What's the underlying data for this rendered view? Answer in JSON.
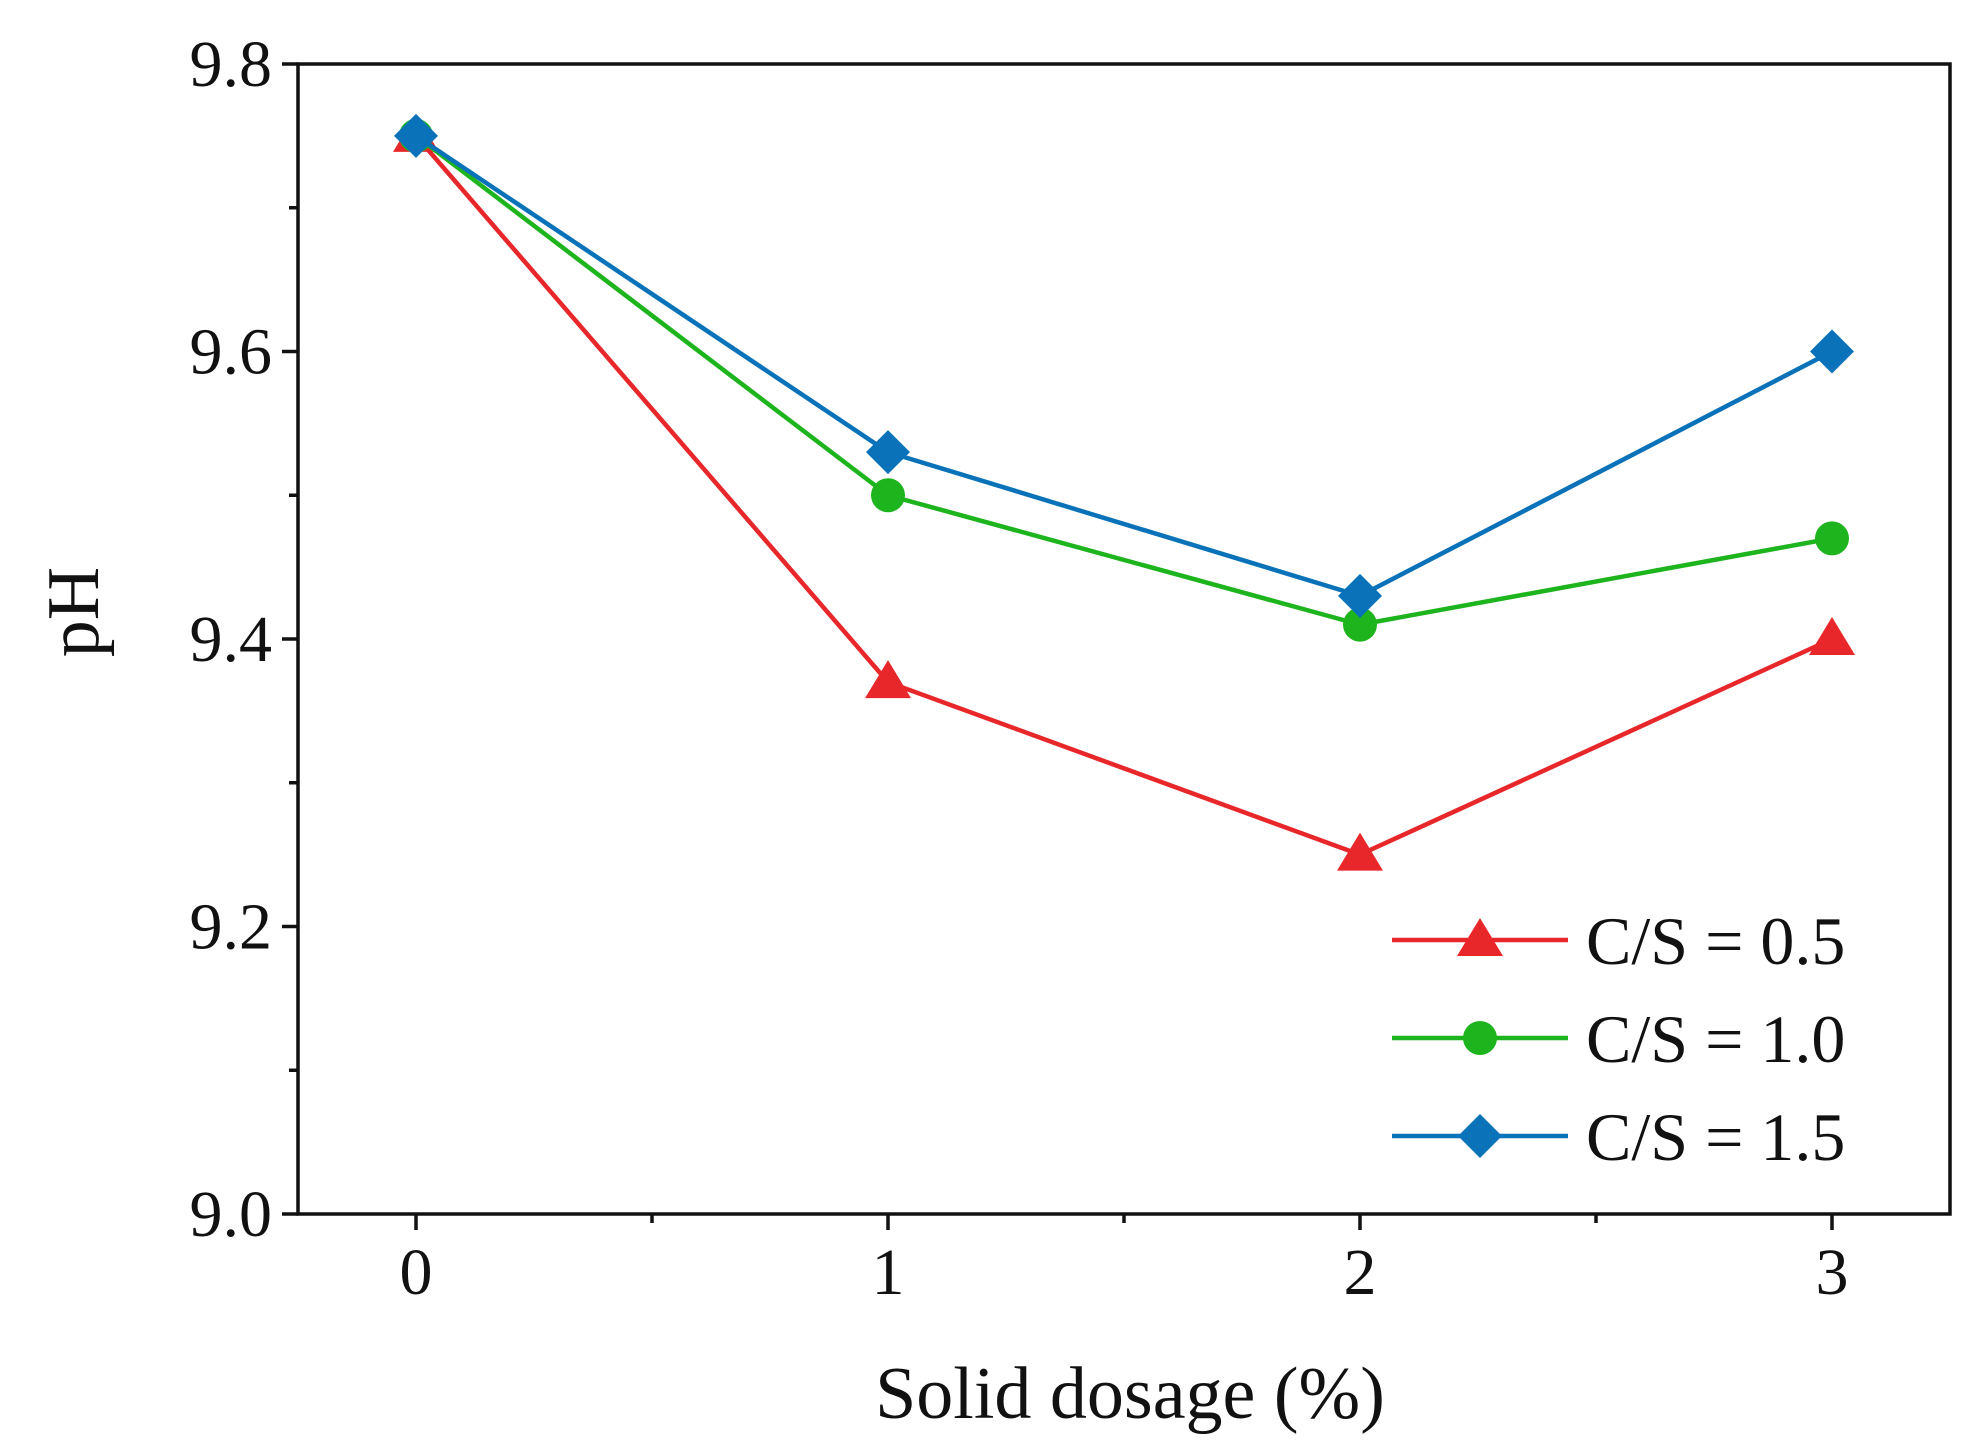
{
  "chart_data": {
    "type": "line",
    "title": "",
    "xlabel": "Solid dosage (%)",
    "ylabel": "pH",
    "x": [
      0,
      1,
      2,
      3
    ],
    "xlim": [
      -0.25,
      3.25
    ],
    "ylim": [
      9.0,
      9.8
    ],
    "xticks": [
      "0",
      "1",
      "2",
      "3"
    ],
    "yticks": [
      "9.0",
      "9.2",
      "9.4",
      "9.6",
      "9.8"
    ],
    "grid": false,
    "legend_position": "bottom-right",
    "series": [
      {
        "name": "C/S = 0.5",
        "marker": "triangle",
        "color": "#e8272a",
        "values": [
          9.75,
          9.37,
          9.25,
          9.4
        ]
      },
      {
        "name": "C/S = 1.0",
        "marker": "circle",
        "color": "#1eb41e",
        "values": [
          9.75,
          9.5,
          9.41,
          9.47
        ]
      },
      {
        "name": "C/S = 1.5",
        "marker": "diamond",
        "color": "#0a72b8",
        "values": [
          9.75,
          9.53,
          9.43,
          9.6
        ]
      }
    ]
  }
}
